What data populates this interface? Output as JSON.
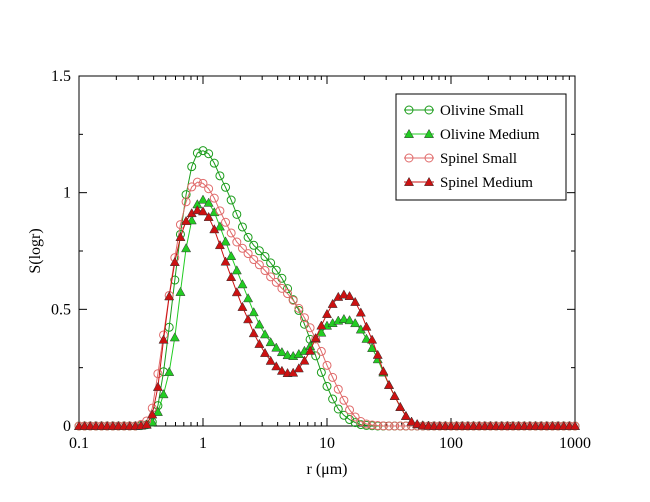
{
  "chart_data": {
    "type": "line",
    "title": "",
    "xlabel": "r (μm)",
    "ylabel": "S(logr)",
    "xscale": "log",
    "xlim": [
      0.1,
      1000
    ],
    "ylim": [
      0,
      1.5
    ],
    "x_ticks": [
      0.1,
      1,
      10,
      100,
      1000
    ],
    "x_tick_labels": [
      "0.1",
      "1",
      "10",
      "100",
      "1000"
    ],
    "y_ticks": [
      0,
      0.5,
      1,
      1.5
    ],
    "y_tick_labels": [
      "0",
      "0.5",
      "1",
      "1.5"
    ],
    "legend_position": "top-right",
    "series": [
      {
        "name": "Olivine Small",
        "color": "#1a9c1a",
        "marker": "open-circle",
        "points": [
          [
            0.1,
            0
          ],
          [
            0.3,
            0
          ],
          [
            0.35,
            0.005
          ],
          [
            0.4,
            0.02
          ],
          [
            0.45,
            0.12
          ],
          [
            0.5,
            0.3
          ],
          [
            0.55,
            0.48
          ],
          [
            0.6,
            0.65
          ],
          [
            0.65,
            0.8
          ],
          [
            0.7,
            0.93
          ],
          [
            0.75,
            1.03
          ],
          [
            0.8,
            1.1
          ],
          [
            0.85,
            1.15
          ],
          [
            0.9,
            1.17
          ],
          [
            1,
            1.18
          ],
          [
            1.1,
            1.17
          ],
          [
            1.2,
            1.14
          ],
          [
            1.3,
            1.1
          ],
          [
            1.4,
            1.06
          ],
          [
            1.6,
            1.0
          ],
          [
            1.8,
            0.93
          ],
          [
            2,
            0.87
          ],
          [
            2.3,
            0.81
          ],
          [
            2.6,
            0.77
          ],
          [
            3,
            0.74
          ],
          [
            3.5,
            0.7
          ],
          [
            4,
            0.66
          ],
          [
            4.5,
            0.62
          ],
          [
            5,
            0.57
          ],
          [
            6,
            0.49
          ],
          [
            7,
            0.4
          ],
          [
            8,
            0.31
          ],
          [
            9,
            0.23
          ],
          [
            10,
            0.17
          ],
          [
            11,
            0.12
          ],
          [
            12,
            0.08
          ],
          [
            14,
            0.04
          ],
          [
            16,
            0.02
          ],
          [
            18,
            0.008
          ],
          [
            20,
            0.003
          ],
          [
            25,
            0
          ],
          [
            1000,
            0
          ]
        ]
      },
      {
        "name": "Olivine Medium",
        "color": "#22cc22",
        "marker": "filled-triangle",
        "points": [
          [
            0.1,
            0
          ],
          [
            0.3,
            0
          ],
          [
            0.35,
            0.005
          ],
          [
            0.4,
            0.02
          ],
          [
            0.45,
            0.08
          ],
          [
            0.5,
            0.17
          ],
          [
            0.55,
            0.26
          ],
          [
            0.6,
            0.4
          ],
          [
            0.65,
            0.55
          ],
          [
            0.7,
            0.7
          ],
          [
            0.75,
            0.8
          ],
          [
            0.8,
            0.87
          ],
          [
            0.85,
            0.92
          ],
          [
            0.9,
            0.95
          ],
          [
            1,
            0.97
          ],
          [
            1.1,
            0.96
          ],
          [
            1.2,
            0.93
          ],
          [
            1.3,
            0.89
          ],
          [
            1.4,
            0.84
          ],
          [
            1.6,
            0.76
          ],
          [
            1.8,
            0.69
          ],
          [
            2,
            0.63
          ],
          [
            2.3,
            0.55
          ],
          [
            2.6,
            0.48
          ],
          [
            3,
            0.41
          ],
          [
            3.5,
            0.36
          ],
          [
            4,
            0.33
          ],
          [
            4.5,
            0.31
          ],
          [
            5,
            0.3
          ],
          [
            5.5,
            0.3
          ],
          [
            6,
            0.31
          ],
          [
            7,
            0.33
          ],
          [
            8,
            0.37
          ],
          [
            9,
            0.4
          ],
          [
            10,
            0.43
          ],
          [
            11,
            0.44
          ],
          [
            12,
            0.45
          ],
          [
            13,
            0.455
          ],
          [
            14,
            0.46
          ],
          [
            15,
            0.455
          ],
          [
            17,
            0.44
          ],
          [
            19,
            0.41
          ],
          [
            21,
            0.37
          ],
          [
            24,
            0.32
          ],
          [
            27,
            0.26
          ],
          [
            30,
            0.2
          ],
          [
            35,
            0.13
          ],
          [
            40,
            0.07
          ],
          [
            45,
            0.03
          ],
          [
            50,
            0.01
          ],
          [
            60,
            0.002
          ],
          [
            70,
            0
          ],
          [
            1000,
            0
          ]
        ]
      },
      {
        "name": "Spinel Small",
        "color": "#e06a6a",
        "marker": "open-circle",
        "points": [
          [
            0.1,
            0
          ],
          [
            0.3,
            0
          ],
          [
            0.35,
            0.02
          ],
          [
            0.4,
            0.09
          ],
          [
            0.45,
            0.29
          ],
          [
            0.5,
            0.45
          ],
          [
            0.55,
            0.61
          ],
          [
            0.6,
            0.74
          ],
          [
            0.65,
            0.85
          ],
          [
            0.7,
            0.93
          ],
          [
            0.75,
            0.98
          ],
          [
            0.8,
            1.02
          ],
          [
            0.85,
            1.04
          ],
          [
            0.9,
            1.045
          ],
          [
            1,
            1.04
          ],
          [
            1.1,
            1.02
          ],
          [
            1.2,
            0.99
          ],
          [
            1.3,
            0.95
          ],
          [
            1.4,
            0.91
          ],
          [
            1.6,
            0.85
          ],
          [
            1.8,
            0.8
          ],
          [
            2,
            0.77
          ],
          [
            2.3,
            0.74
          ],
          [
            2.6,
            0.71
          ],
          [
            3,
            0.68
          ],
          [
            3.5,
            0.64
          ],
          [
            4,
            0.61
          ],
          [
            4.5,
            0.58
          ],
          [
            5,
            0.56
          ],
          [
            6,
            0.5
          ],
          [
            7,
            0.44
          ],
          [
            8,
            0.38
          ],
          [
            9,
            0.32
          ],
          [
            10,
            0.26
          ],
          [
            12,
            0.17
          ],
          [
            14,
            0.1
          ],
          [
            16,
            0.05
          ],
          [
            18,
            0.025
          ],
          [
            20,
            0.01
          ],
          [
            24,
            0.003
          ],
          [
            30,
            0
          ],
          [
            1000,
            0
          ]
        ]
      },
      {
        "name": "Spinel Medium",
        "color": "#cc1111",
        "marker": "filled-triangle",
        "points": [
          [
            0.1,
            0
          ],
          [
            0.3,
            0
          ],
          [
            0.35,
            0.005
          ],
          [
            0.4,
            0.06
          ],
          [
            0.45,
            0.22
          ],
          [
            0.5,
            0.46
          ],
          [
            0.55,
            0.6
          ],
          [
            0.6,
            0.72
          ],
          [
            0.65,
            0.8
          ],
          [
            0.7,
            0.86
          ],
          [
            0.75,
            0.89
          ],
          [
            0.8,
            0.91
          ],
          [
            0.85,
            0.92
          ],
          [
            0.9,
            0.925
          ],
          [
            1,
            0.92
          ],
          [
            1.1,
            0.9
          ],
          [
            1.2,
            0.86
          ],
          [
            1.3,
            0.81
          ],
          [
            1.4,
            0.76
          ],
          [
            1.6,
            0.67
          ],
          [
            1.8,
            0.6
          ],
          [
            2,
            0.53
          ],
          [
            2.3,
            0.46
          ],
          [
            2.6,
            0.39
          ],
          [
            3,
            0.33
          ],
          [
            3.5,
            0.28
          ],
          [
            4,
            0.25
          ],
          [
            4.5,
            0.23
          ],
          [
            5,
            0.225
          ],
          [
            5.5,
            0.23
          ],
          [
            6,
            0.25
          ],
          [
            7,
            0.3
          ],
          [
            8,
            0.37
          ],
          [
            9,
            0.43
          ],
          [
            10,
            0.48
          ],
          [
            11,
            0.52
          ],
          [
            12,
            0.55
          ],
          [
            13,
            0.56
          ],
          [
            14,
            0.565
          ],
          [
            15,
            0.56
          ],
          [
            17,
            0.53
          ],
          [
            19,
            0.48
          ],
          [
            21,
            0.42
          ],
          [
            24,
            0.35
          ],
          [
            27,
            0.27
          ],
          [
            30,
            0.2
          ],
          [
            35,
            0.13
          ],
          [
            40,
            0.07
          ],
          [
            45,
            0.03
          ],
          [
            50,
            0.012
          ],
          [
            60,
            0.002
          ],
          [
            70,
            0
          ],
          [
            1000,
            0
          ]
        ]
      }
    ]
  }
}
